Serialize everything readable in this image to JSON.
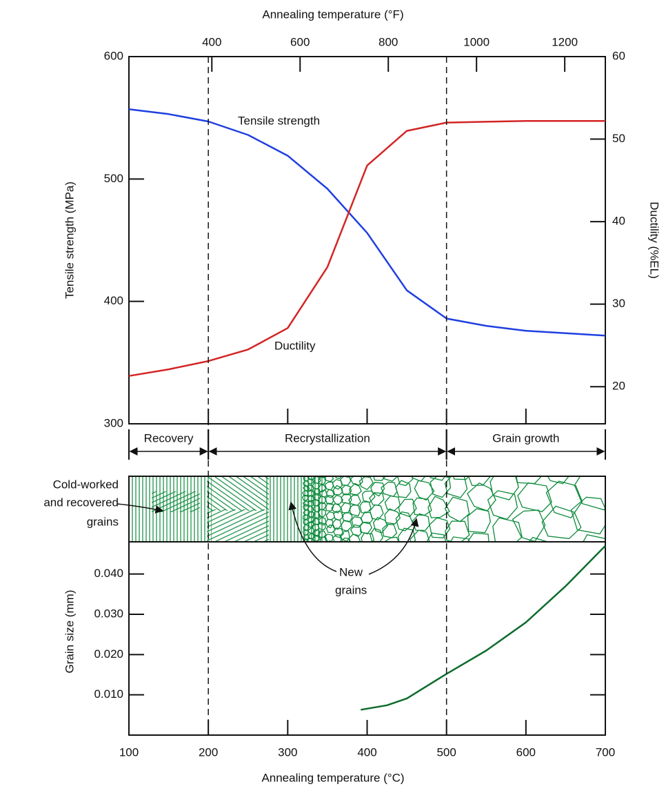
{
  "chart_data": [
    {
      "type": "line",
      "x2label": "Annealing temperature (°F)",
      "ylabel": "Tensile strength (MPa)",
      "y2label": "Ductility (%EL)",
      "x": [
        100,
        150,
        200,
        250,
        300,
        350,
        400,
        450,
        500,
        550,
        600,
        650,
        700
      ],
      "xlim": [
        100,
        700
      ],
      "x2lim": [
        212,
        1292
      ],
      "x2ticks": [
        400,
        600,
        800,
        1000,
        1200
      ],
      "ylim": [
        300,
        600
      ],
      "yticks": [
        300,
        400,
        500,
        600
      ],
      "y2lim": [
        15.5,
        60
      ],
      "y2ticks": [
        20,
        30,
        40,
        50,
        60
      ],
      "series": [
        {
          "name": "Tensile strength",
          "color": "#1f3fe0",
          "values": [
            557,
            553,
            547,
            536,
            519,
            492,
            456,
            409,
            386,
            380,
            376,
            374,
            372
          ]
        },
        {
          "name": "Ductility",
          "color": "#d42424",
          "axis": "y2",
          "values": [
            21.3,
            22.1,
            23.1,
            24.5,
            27.1,
            34.5,
            46.8,
            51,
            52,
            52.1,
            52.2,
            52.2,
            52.2
          ]
        }
      ]
    },
    {
      "type": "line",
      "xlabel": "Annealing temperature (°C)",
      "ylabel": "Grain size (mm)",
      "x": [
        392,
        425,
        450,
        500,
        550,
        600,
        650,
        700
      ],
      "xlim": [
        100,
        700
      ],
      "xticks": [
        100,
        200,
        300,
        400,
        500,
        600,
        700
      ],
      "ylim": [
        0,
        0.048
      ],
      "yticks": [
        {
          "value": 0.01,
          "label": "0.010"
        },
        {
          "value": 0.02,
          "label": "0.020"
        },
        {
          "value": 0.03,
          "label": "0.030"
        },
        {
          "value": 0.04,
          "label": "0.040"
        }
      ],
      "series": [
        {
          "color": "#0d6b2c",
          "values": [
            0.0063,
            0.0074,
            0.0091,
            0.0152,
            0.021,
            0.028,
            0.037,
            0.047
          ]
        }
      ],
      "regions": [
        {
          "label": "Recovery",
          "from": 100,
          "to": 200
        },
        {
          "label": "Recrystallization",
          "from": 200,
          "to": 500
        },
        {
          "label": "Grain growth",
          "from": 500,
          "to": 700
        }
      ],
      "annotations": [
        {
          "text": [
            "Cold-worked",
            "and recovered",
            "grains"
          ]
        },
        {
          "text": [
            "New",
            "grains"
          ]
        }
      ]
    }
  ]
}
